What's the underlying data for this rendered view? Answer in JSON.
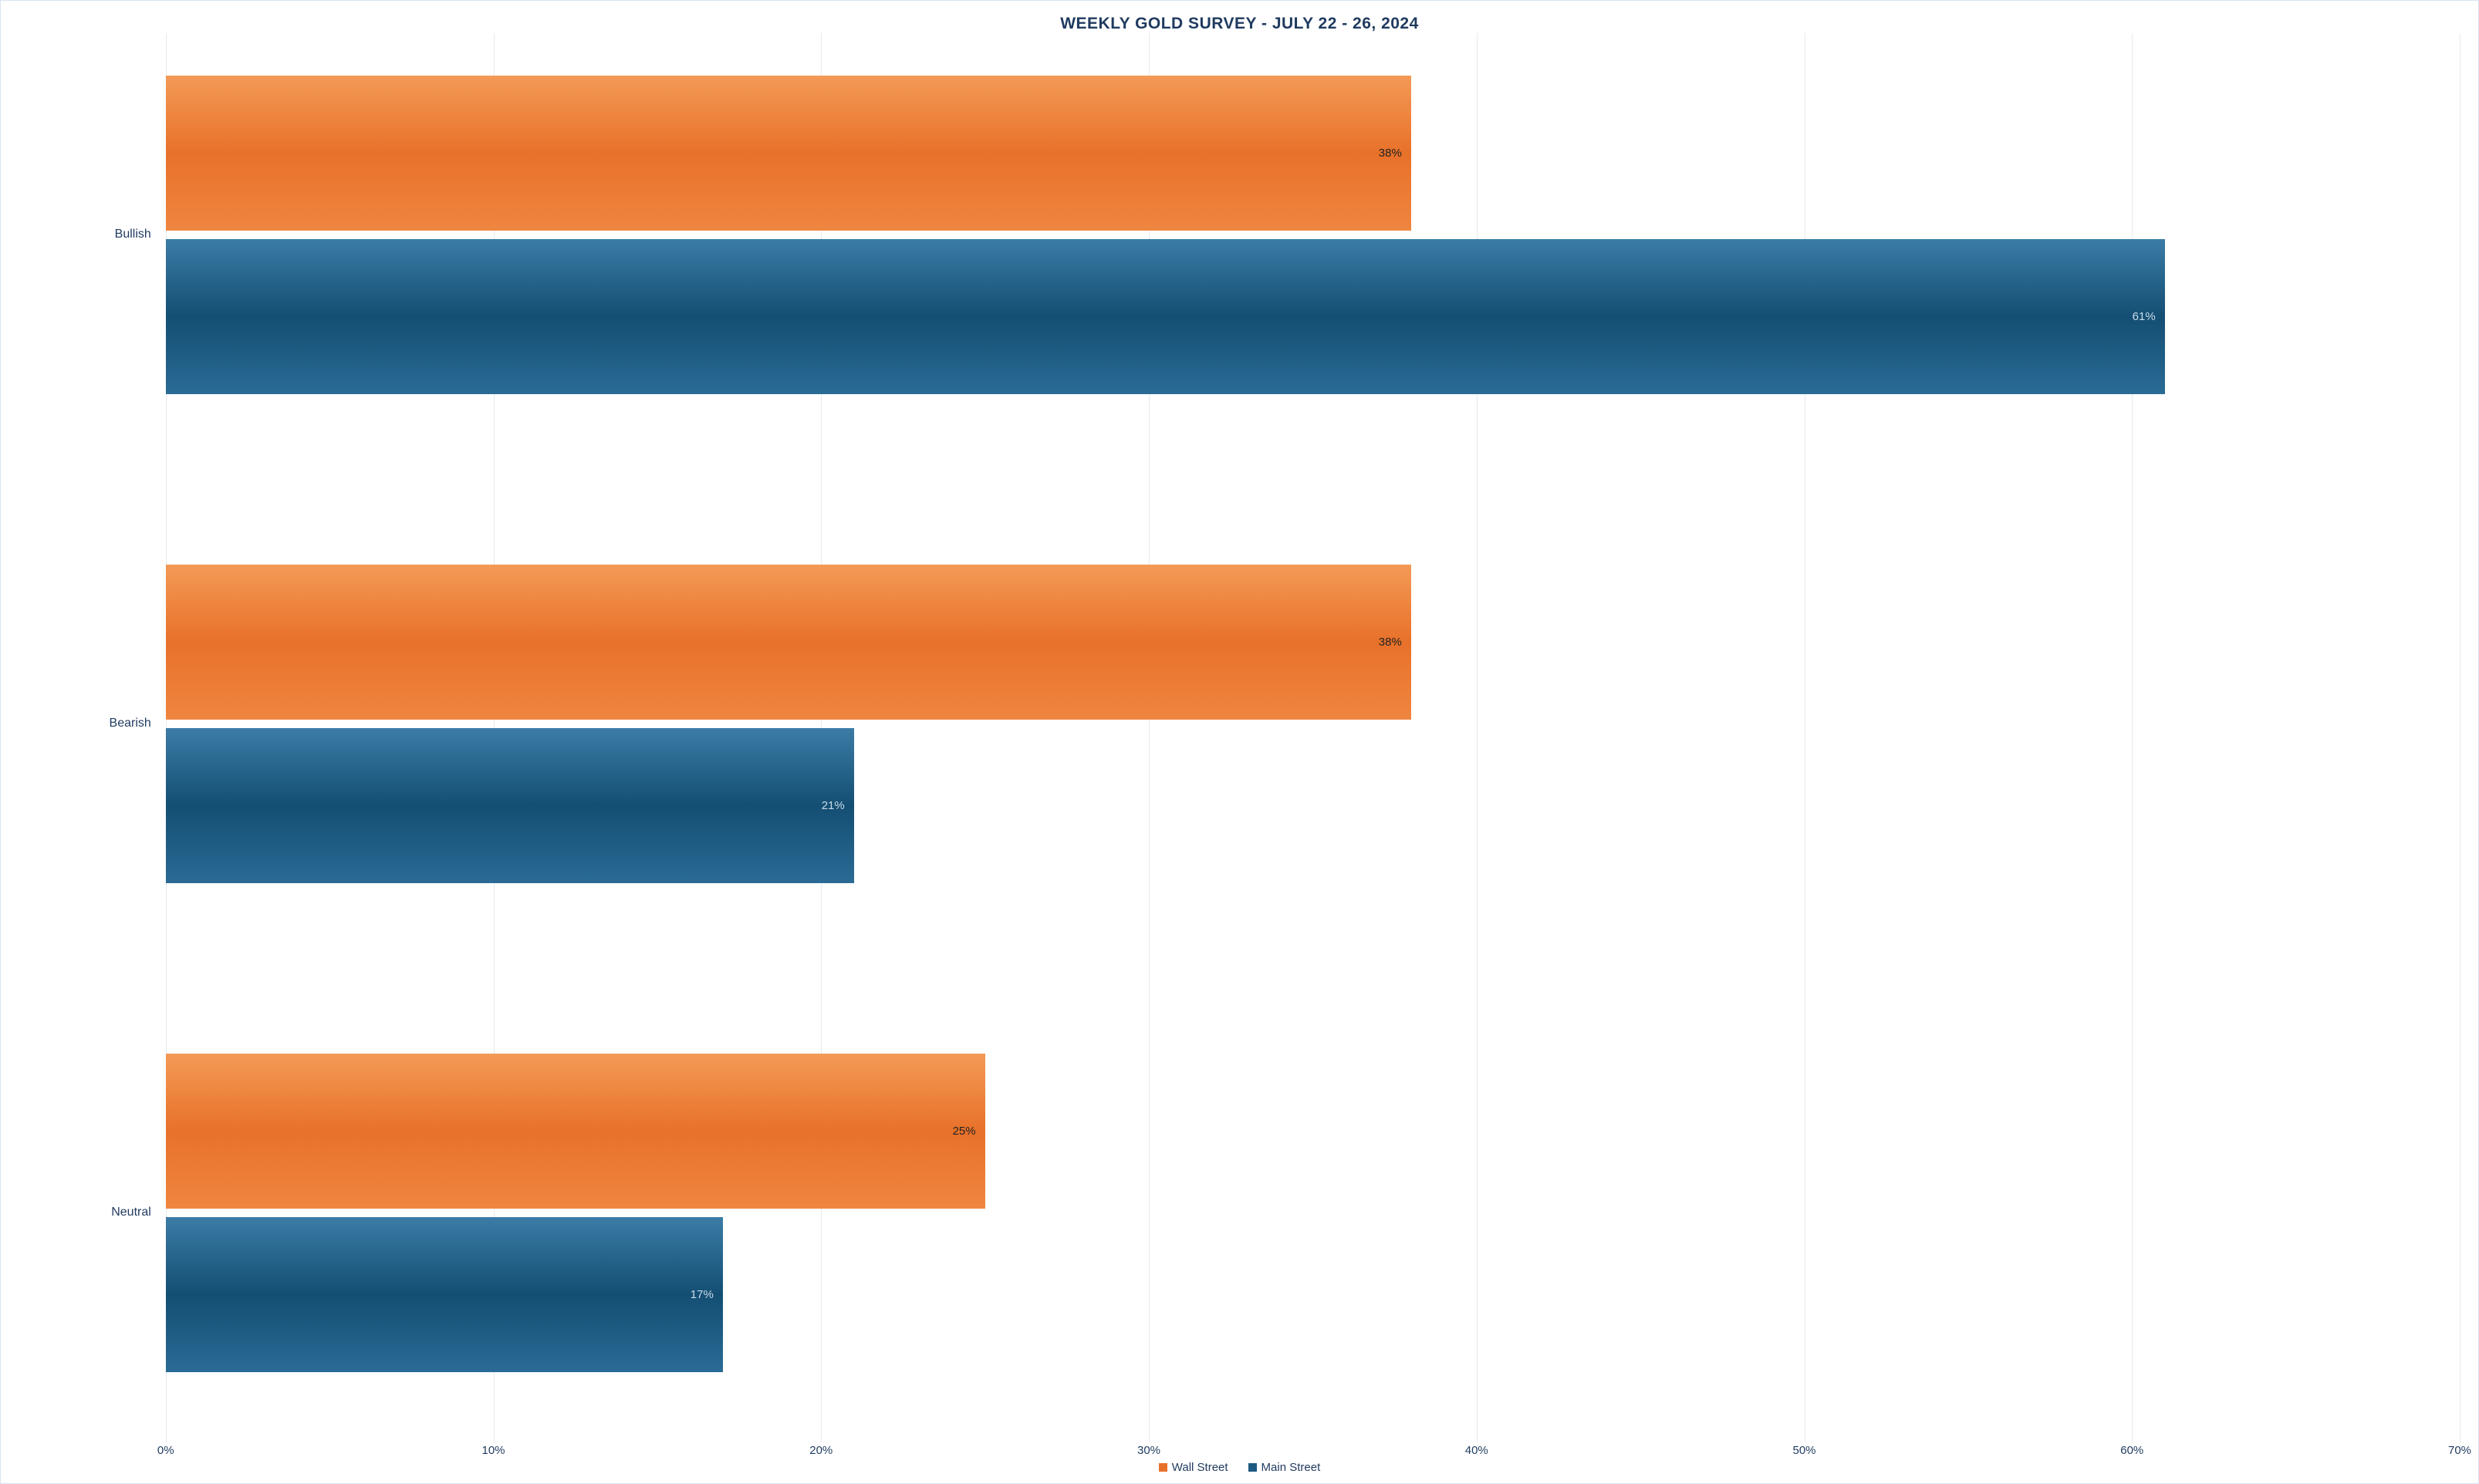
{
  "chart": {
    "type": "bar-horizontal-grouped",
    "title": "WEEKLY GOLD SURVEY - JULY 22 - 26, 2024",
    "title_fontsize": 21,
    "title_color": "#1f3a5f",
    "axis_text_color": "#1f3a5f",
    "background_color": "#ffffff",
    "border_color": "#d9e3ee",
    "gridline_color": "#e4e9ef",
    "categories": [
      "Bullish",
      "Bearish",
      "Neutral"
    ],
    "series": [
      {
        "name": "Wall Street",
        "color_start": "#f39a56",
        "color_mid": "#e8712a",
        "color_end": "#ef8640",
        "swatch_color": "#e8712a",
        "text_color": "#222222",
        "values": [
          38,
          38,
          25
        ]
      },
      {
        "name": "Main Street",
        "color_start": "#3b7ca6",
        "color_mid": "#144e73",
        "color_end": "#2a6b95",
        "swatch_color": "#1c5a82",
        "text_color": "#c9dceb",
        "values": [
          61,
          21,
          17
        ]
      }
    ],
    "x_axis": {
      "min": 0,
      "max": 70,
      "tick_step": 10,
      "ticks": [
        0,
        10,
        20,
        30,
        40,
        50,
        60,
        70
      ],
      "suffix": "%",
      "tick_fontsize": 15
    },
    "layout": {
      "left_label_width_pct": 6.0,
      "plot_height_pct": 100,
      "group_gap_pct": 9.0,
      "pair_gap_pct": 0.6,
      "bar_height_pct": 11.0,
      "top_pad_pct": 3.0,
      "bottom_pad_pct": 5.0,
      "category_label_fontsize": 16,
      "bar_label_fontsize": 15,
      "legend_fontsize": 15
    }
  }
}
